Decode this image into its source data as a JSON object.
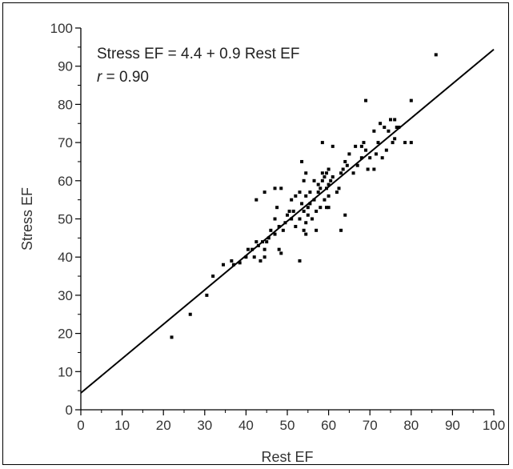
{
  "chart_data": {
    "type": "scatter",
    "xlabel": "Rest EF",
    "ylabel": "Stress EF",
    "xlim": [
      0,
      100
    ],
    "ylim": [
      0,
      100
    ],
    "xticks": [
      0,
      10,
      20,
      30,
      40,
      50,
      60,
      70,
      80,
      90,
      100
    ],
    "yticks": [
      0,
      10,
      20,
      30,
      40,
      50,
      60,
      70,
      80,
      90,
      100
    ],
    "grid": false,
    "regression": {
      "intercept": 4.4,
      "slope": 0.9,
      "x_range": [
        0,
        100
      ]
    },
    "annotations": [
      {
        "prefix": "",
        "emph": "",
        "text": "Stress EF = 4.4 + 0.9 Rest EF"
      },
      {
        "prefix": "",
        "emph": "r",
        "text": " = 0.90"
      }
    ],
    "series": [
      {
        "points": [
          [
            22,
            19
          ],
          [
            26.5,
            25
          ],
          [
            30.5,
            30
          ],
          [
            32,
            35
          ],
          [
            34.5,
            38
          ],
          [
            36.5,
            39
          ],
          [
            37,
            38
          ],
          [
            38.5,
            38.5
          ],
          [
            40,
            40
          ],
          [
            40.5,
            42
          ],
          [
            41.5,
            42
          ],
          [
            42,
            40
          ],
          [
            42.5,
            44
          ],
          [
            43,
            43
          ],
          [
            43.5,
            39
          ],
          [
            44,
            44
          ],
          [
            44.5,
            42
          ],
          [
            44.5,
            40
          ],
          [
            45,
            44
          ],
          [
            45.5,
            45
          ],
          [
            46,
            47
          ],
          [
            42.5,
            55
          ],
          [
            44.5,
            57
          ],
          [
            47,
            50
          ],
          [
            47,
            46
          ],
          [
            47.5,
            53
          ],
          [
            47,
            58
          ],
          [
            48,
            48
          ],
          [
            48.5,
            58
          ],
          [
            48,
            42
          ],
          [
            48.5,
            41
          ],
          [
            49,
            47
          ],
          [
            49.5,
            49
          ],
          [
            50,
            51
          ],
          [
            50.5,
            52
          ],
          [
            51,
            50
          ],
          [
            51,
            55
          ],
          [
            51.5,
            52
          ],
          [
            52,
            56
          ],
          [
            52,
            48
          ],
          [
            53,
            50
          ],
          [
            53,
            57
          ],
          [
            53,
            39
          ],
          [
            53.5,
            54
          ],
          [
            53.5,
            65
          ],
          [
            54,
            52
          ],
          [
            54,
            60
          ],
          [
            54,
            47
          ],
          [
            54.5,
            56
          ],
          [
            54.5,
            49
          ],
          [
            54.5,
            46
          ],
          [
            54.5,
            62
          ],
          [
            55,
            51
          ],
          [
            55,
            53
          ],
          [
            55.5,
            54
          ],
          [
            55.5,
            57
          ],
          [
            56,
            50
          ],
          [
            56.5,
            55
          ],
          [
            56.5,
            60
          ],
          [
            57,
            52
          ],
          [
            57,
            47
          ],
          [
            57.5,
            57
          ],
          [
            57.5,
            59
          ],
          [
            58,
            58
          ],
          [
            58,
            53
          ],
          [
            58.5,
            60
          ],
          [
            58.5,
            62
          ],
          [
            58.5,
            70
          ],
          [
            59,
            61
          ],
          [
            59,
            55
          ],
          [
            59.5,
            62
          ],
          [
            59.5,
            58
          ],
          [
            59.5,
            53
          ],
          [
            60,
            63
          ],
          [
            60,
            59
          ],
          [
            60,
            56
          ],
          [
            60,
            53
          ],
          [
            60.5,
            60
          ],
          [
            61,
            61
          ],
          [
            61,
            69
          ],
          [
            62,
            57
          ],
          [
            62.5,
            58
          ],
          [
            63,
            47
          ],
          [
            63,
            62
          ],
          [
            63.5,
            63
          ],
          [
            64,
            65
          ],
          [
            64,
            51
          ],
          [
            64.5,
            64
          ],
          [
            65,
            67
          ],
          [
            66,
            62
          ],
          [
            66.5,
            69
          ],
          [
            67,
            64
          ],
          [
            68,
            69
          ],
          [
            68,
            66
          ],
          [
            68.5,
            70
          ],
          [
            69,
            81
          ],
          [
            69,
            68
          ],
          [
            69.5,
            63
          ],
          [
            70,
            66
          ],
          [
            71,
            73
          ],
          [
            71,
            63
          ],
          [
            71.5,
            67
          ],
          [
            72,
            70
          ],
          [
            72.5,
            75
          ],
          [
            73,
            66
          ],
          [
            73.5,
            74
          ],
          [
            74,
            68
          ],
          [
            74.5,
            73
          ],
          [
            75,
            76
          ],
          [
            75.5,
            70
          ],
          [
            76,
            76
          ],
          [
            76.5,
            74
          ],
          [
            76,
            71
          ],
          [
            77,
            74
          ],
          [
            78.5,
            70
          ],
          [
            80,
            81
          ],
          [
            80,
            70
          ],
          [
            86,
            93
          ]
        ]
      }
    ]
  }
}
